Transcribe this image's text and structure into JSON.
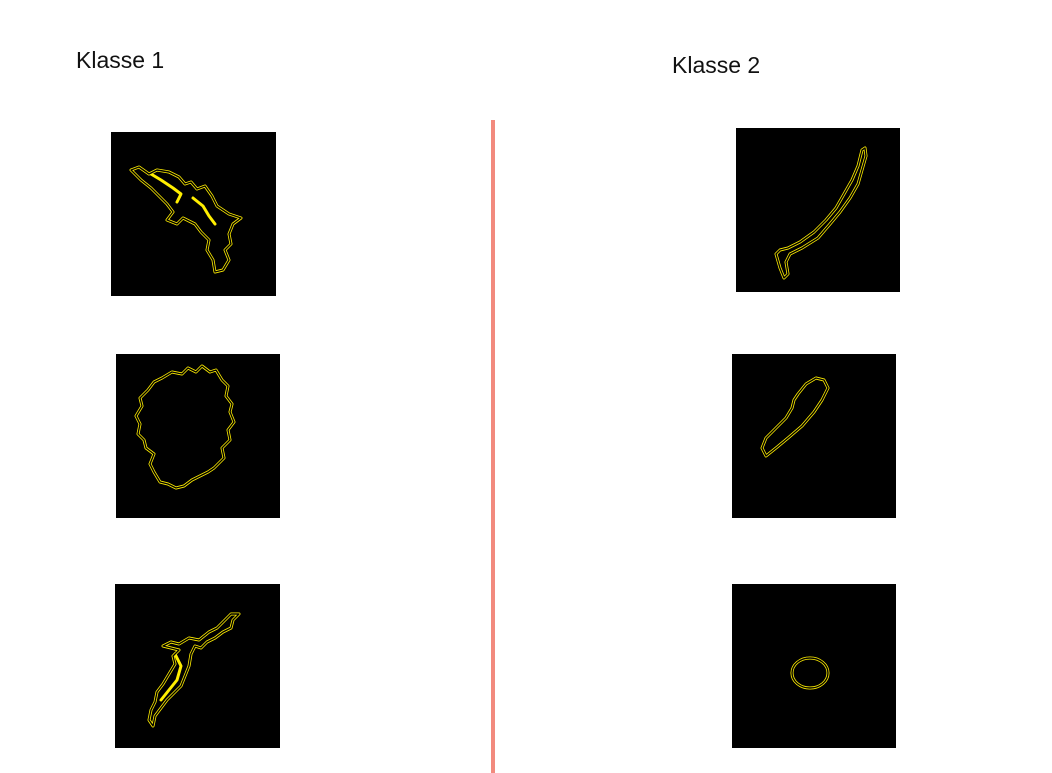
{
  "classes": [
    {
      "label": "Klasse 1"
    },
    {
      "label": "Klasse 2"
    }
  ],
  "colors": {
    "background": "#ffffff",
    "tile_background": "#000000",
    "contour": "#ffee00",
    "divider": "#f28a7e"
  }
}
